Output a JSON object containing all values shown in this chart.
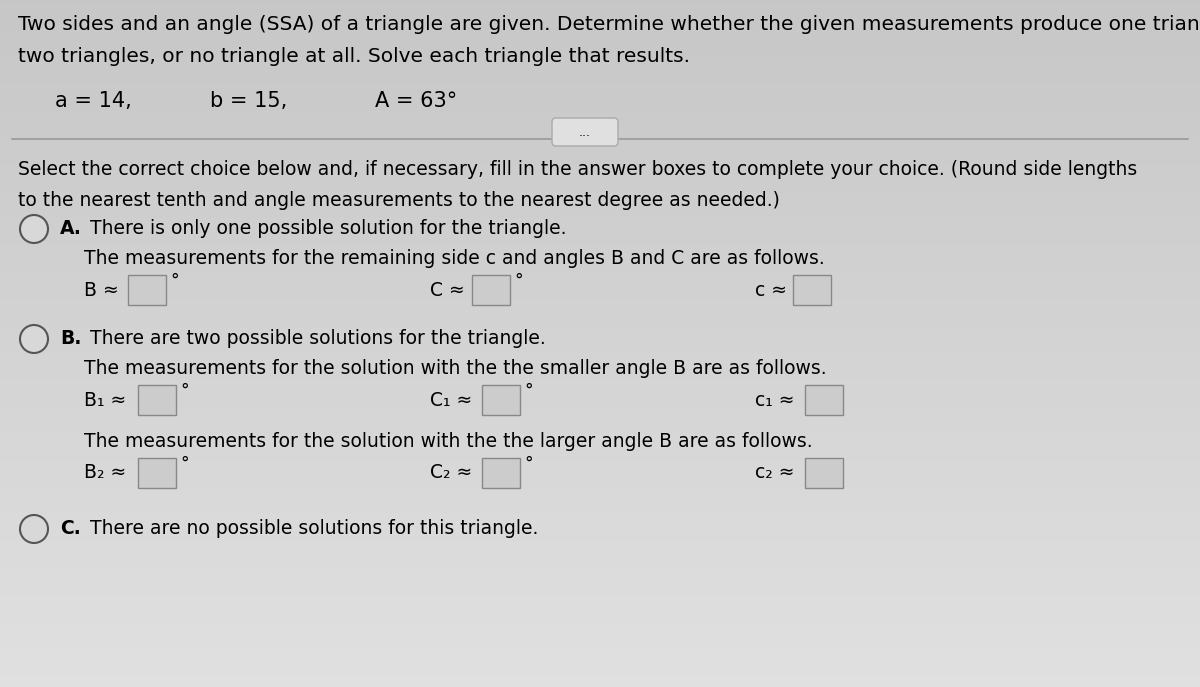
{
  "bg_color": "#d8d8d8",
  "title_lines": [
    "Two sides and an angle (SSA) of a triangle are given. Determine whether the given measurements produce one triangle,",
    "two triangles, or no triangle at all. Solve each triangle that results."
  ],
  "given_line_parts": [
    "a = 14,",
    "b = 15,",
    "A = 63°"
  ],
  "instruction_line1": "Select the correct choice below and, if necessary, fill in the answer boxes to complete your choice. (Round side lengths",
  "instruction_line2": "to the nearest tenth and angle measurements to the nearest degree as needed.)",
  "option_A_line1": "A.  There is only one possible solution for the triangle.",
  "option_A_line2": "The measurements for the remaining side c and angles B and C are as follows.",
  "option_B_line1": "B.  There are two possible solutions for the triangle.",
  "option_B_sub1": "The measurements for the solution with the the smaller angle B are as follows.",
  "option_B_sub2": "The measurements for the solution with the the larger angle B are as follows.",
  "option_C_line1": "C.  There are no possible solutions for this triangle.",
  "dots_button": "...",
  "font_size_title": 14.5,
  "font_size_body": 13.5,
  "font_size_given": 15.0,
  "font_size_field": 13.5,
  "font_size_btn": 9
}
